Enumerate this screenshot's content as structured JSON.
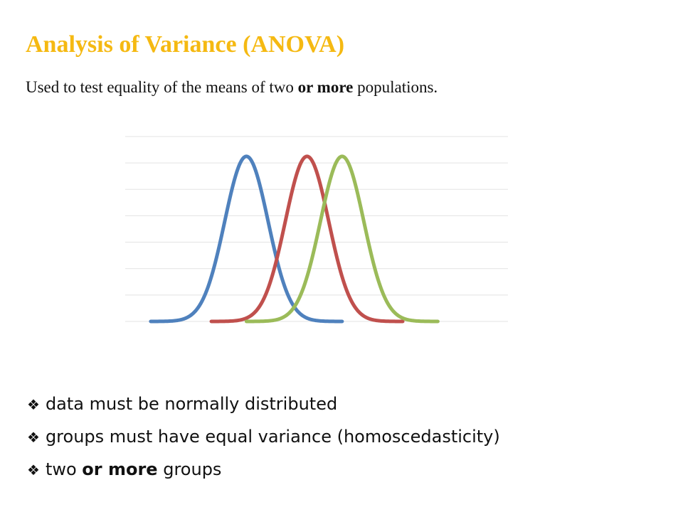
{
  "title": "Analysis of Variance (ANOVA)",
  "subtitle": {
    "before": "Used to test equality of the means of two ",
    "bold": "or more",
    "after": " populations."
  },
  "bullets": [
    {
      "icon": "diamond-bullet-icon",
      "glyph": "❖",
      "before": "data must be normally distributed",
      "bold": "",
      "after": ""
    },
    {
      "icon": "diamond-bullet-icon",
      "glyph": "❖",
      "before": "groups must have equal variance (homoscedasticity)",
      "bold": "",
      "after": ""
    },
    {
      "icon": "diamond-bullet-icon",
      "glyph": "❖",
      "before": "two ",
      "bold": "or more",
      "after": " groups"
    }
  ],
  "chart_data": {
    "type": "line",
    "title": "",
    "xlabel": "",
    "ylabel": "",
    "grid": true,
    "gridlines": 7,
    "xlim": [
      0,
      30
    ],
    "ylim": [
      0,
      1.12
    ],
    "series": [
      {
        "color": "#4f81bd",
        "mean": 9.5,
        "sd": 1.7,
        "x": [
          2,
          17
        ]
      },
      {
        "color": "#c0504d",
        "mean": 14.25,
        "sd": 1.7,
        "x": [
          6.75,
          21.75
        ]
      },
      {
        "color": "#9bbb59",
        "mean": 17.0,
        "sd": 1.7,
        "x": [
          9.5,
          24.5
        ]
      }
    ]
  }
}
